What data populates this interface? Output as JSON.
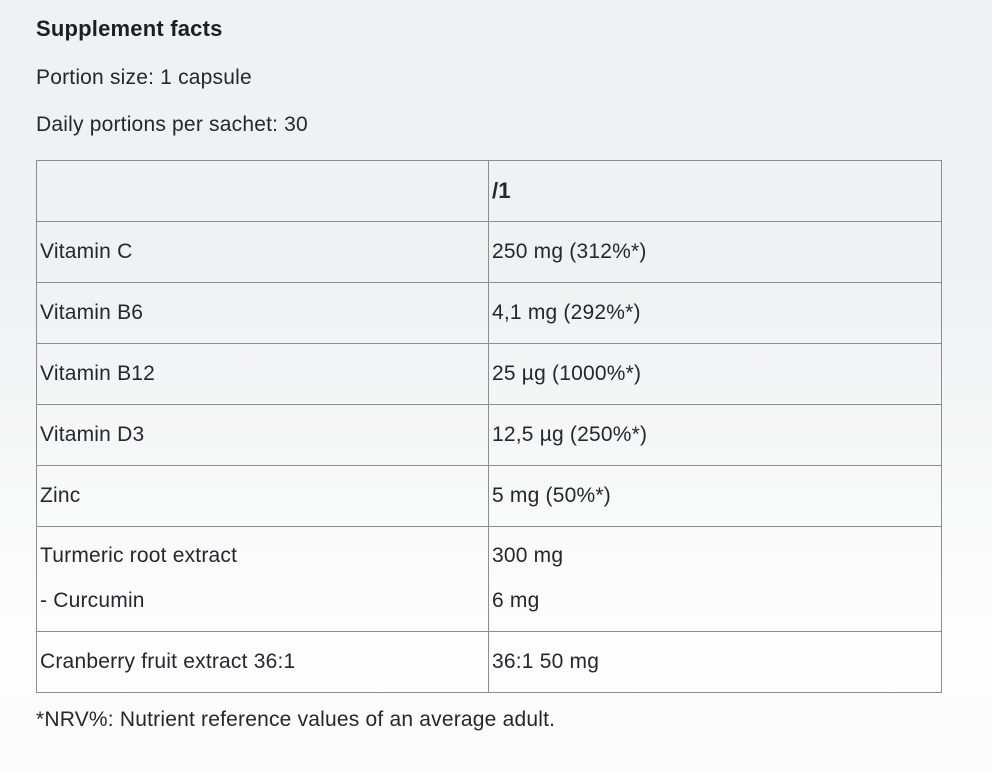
{
  "section": {
    "title": "Supplement facts",
    "portion_size_line": "Portion size: 1 capsule",
    "daily_portions_line": "Daily portions per sachet: 30",
    "footnote": "*NRV%: Nutrient reference values of an average adult."
  },
  "table": {
    "columns": [
      "",
      "/1"
    ],
    "rows": [
      {
        "name_lines": [
          "Vitamin C"
        ],
        "value_lines": [
          "250 mg (312%*)"
        ]
      },
      {
        "name_lines": [
          "Vitamin B6"
        ],
        "value_lines": [
          "4,1 mg (292%*)"
        ]
      },
      {
        "name_lines": [
          "Vitamin B12"
        ],
        "value_lines": [
          "25 µg (1000%*)"
        ]
      },
      {
        "name_lines": [
          "Vitamin D3"
        ],
        "value_lines": [
          "12,5 µg (250%*)"
        ]
      },
      {
        "name_lines": [
          "Zinc"
        ],
        "value_lines": [
          "5 mg (50%*)"
        ]
      },
      {
        "name_lines": [
          "Turmeric root extract",
          "- Curcumin"
        ],
        "value_lines": [
          "300 mg",
          "6 mg"
        ]
      },
      {
        "name_lines": [
          "Cranberry fruit extract 36:1"
        ],
        "value_lines": [
          "36:1 50 mg"
        ]
      }
    ]
  },
  "colors": {
    "text": "#26262e",
    "border": "#8d8d8d",
    "background_top": "#f0f1f3",
    "background_bottom": "#fcfcfc"
  }
}
